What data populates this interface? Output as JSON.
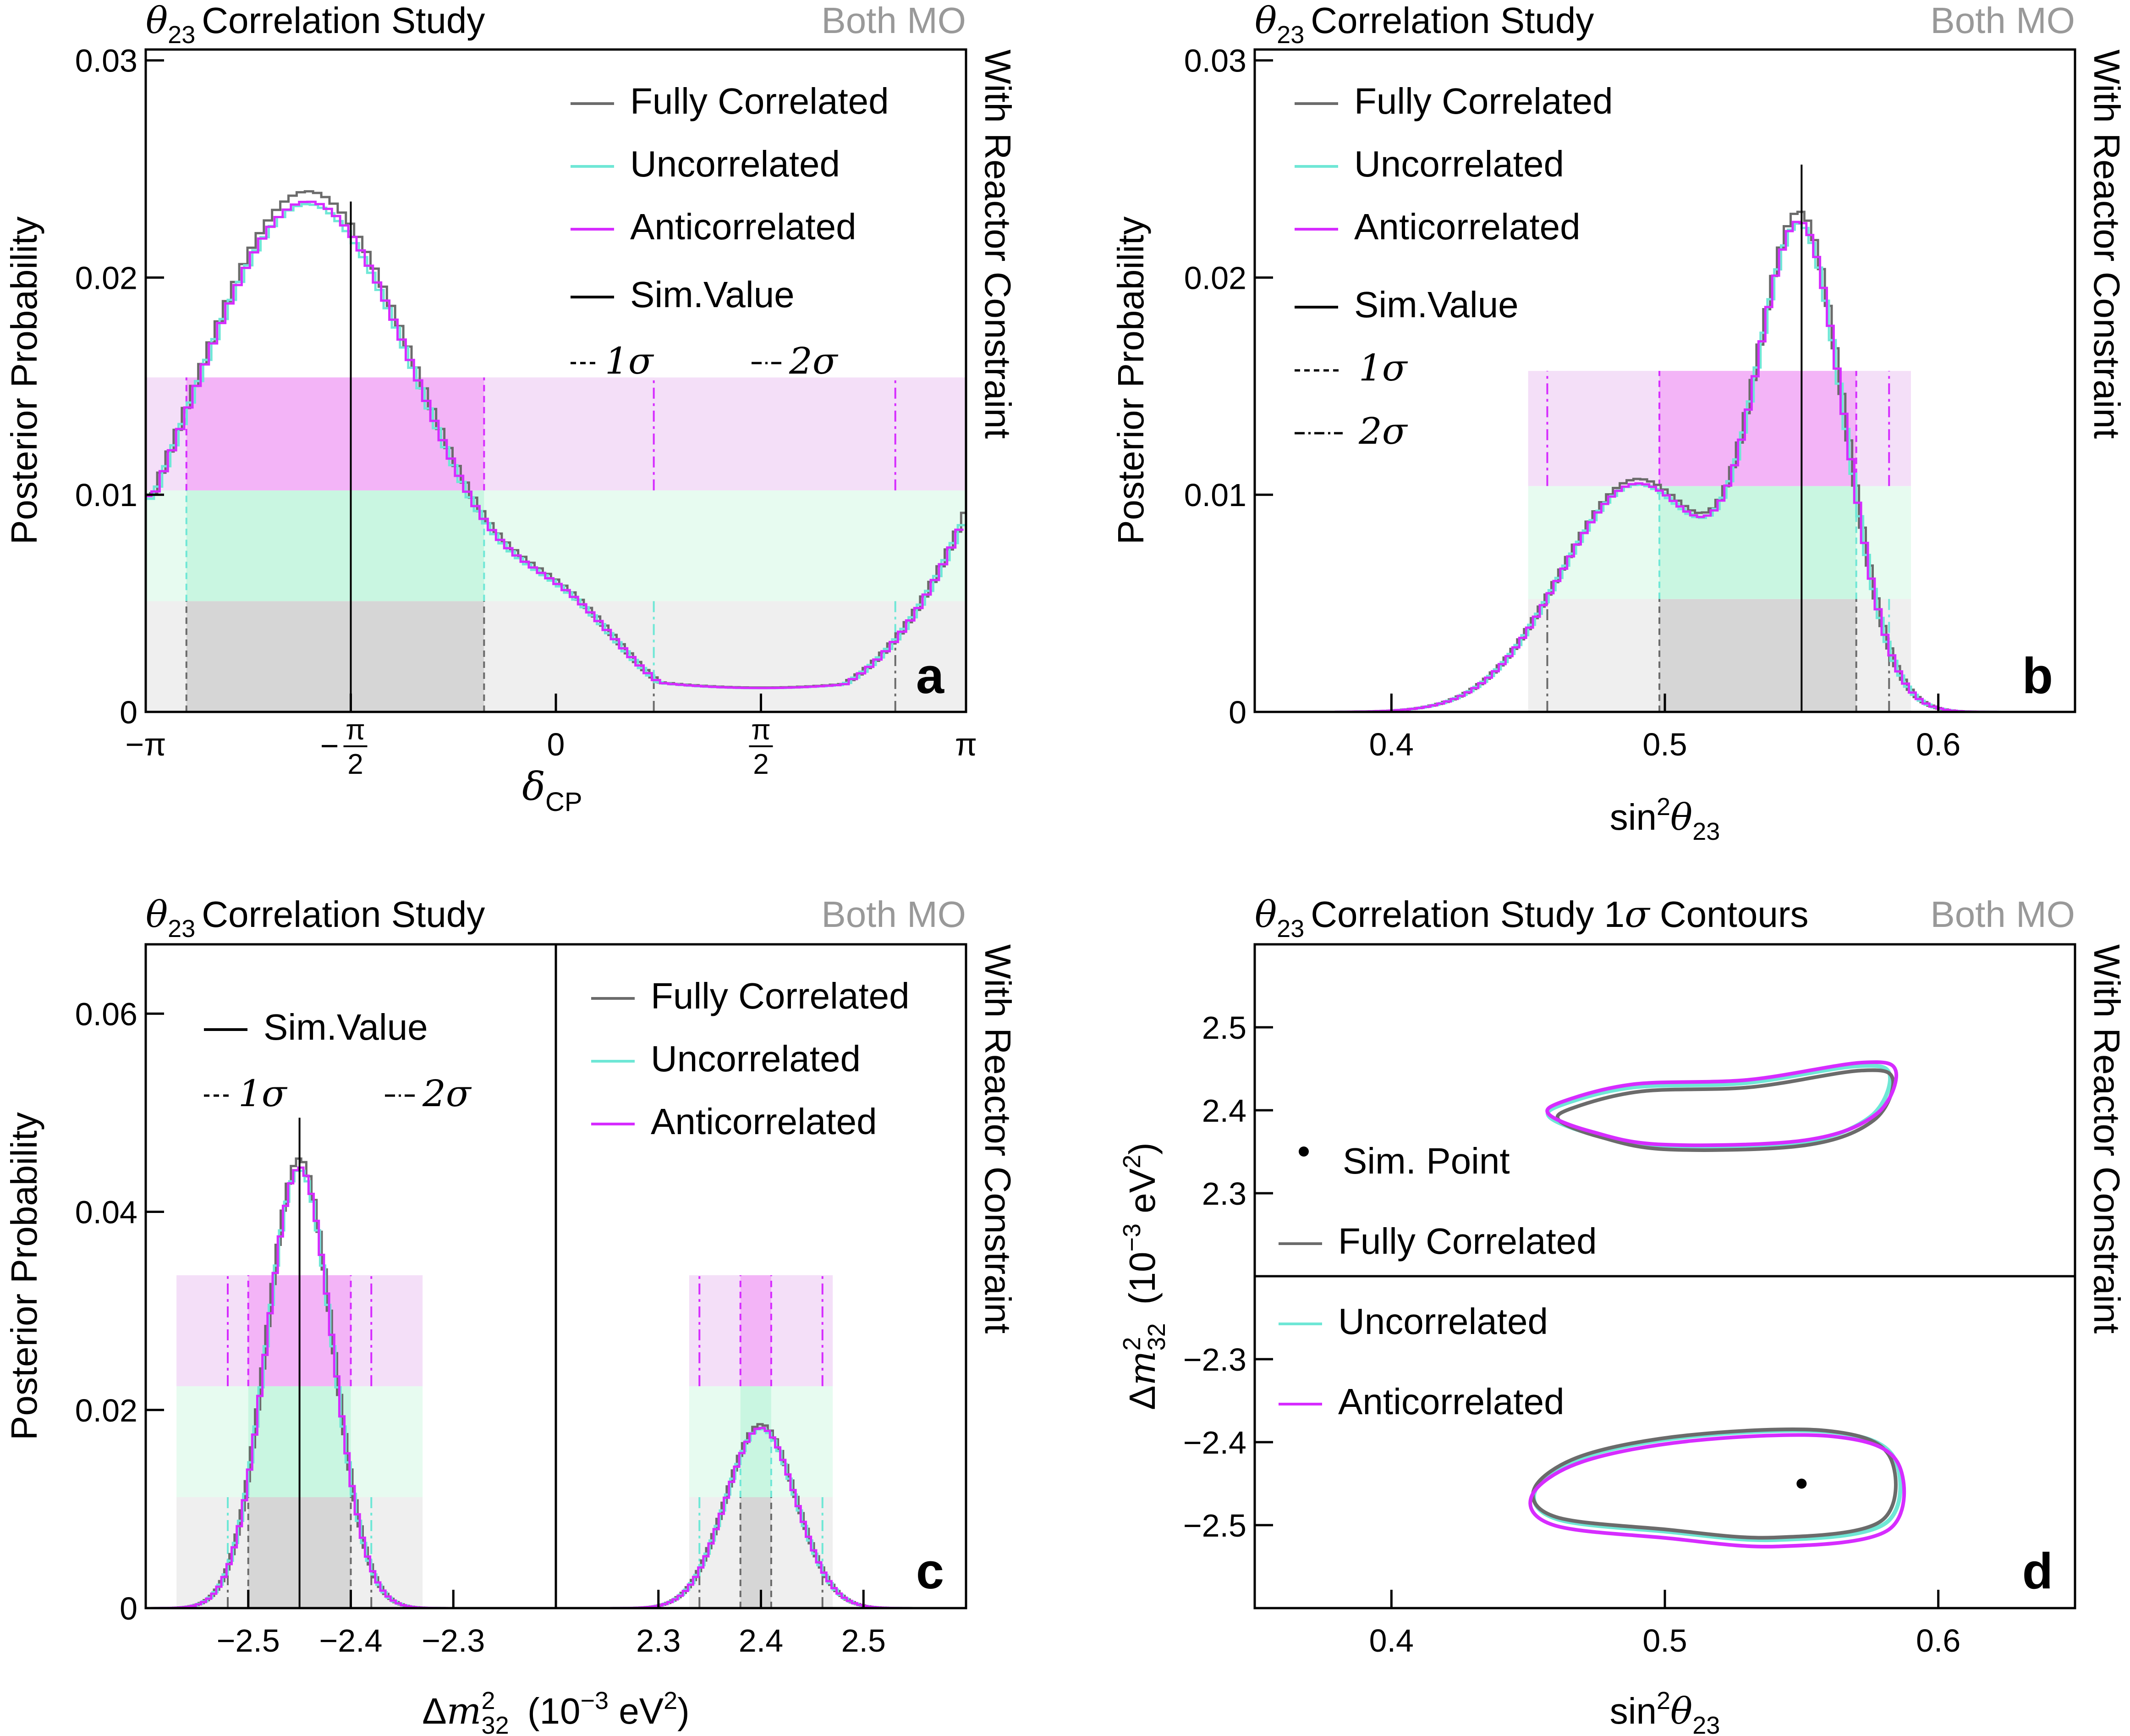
{
  "figure_title": "θ23 Correlation Study figure",
  "colors": {
    "fully_correlated": "#6b6b6b",
    "uncorrelated": "#6fe7d6",
    "anticorrelated": "#d62cff",
    "sim_value": "#000000",
    "band_gray_1s": "#d6d6d6",
    "band_gray_2s": "#efefef",
    "band_teal_1s": "#c9f6e1",
    "band_teal_2s": "#e7fbf0",
    "band_mag_1s": "#f3b4f7",
    "band_mag_2s": "#f4dff8",
    "both_mo": "#999999"
  },
  "common": {
    "correlation_study": "Correlation Study",
    "both_mo": "Both MO",
    "with_reactor": "With Reactor Constraint",
    "posterior_probability": "Posterior Probability",
    "legend_fully": "Fully Correlated",
    "legend_uncorrelated": "Uncorrelated",
    "legend_anticorrelated": "Anticorrelated",
    "legend_sim": "Sim.Value",
    "legend_1s": "1σ",
    "legend_2s": "2σ"
  },
  "chart_data": [
    {
      "id": "a",
      "type": "histogram",
      "title": "θ23 Correlation Study",
      "panel_label": "a",
      "xlabel": "δCP",
      "ylabel": "Posterior Probability",
      "xlim": [
        -3.14159,
        3.14159
      ],
      "ylim": [
        0,
        0.0305
      ],
      "xticks": [
        -3.14159,
        -1.5708,
        0,
        1.5708,
        3.14159
      ],
      "xtick_labels": [
        "−π",
        "−π/2",
        "0",
        "π/2",
        "π"
      ],
      "yticks": [
        0,
        0.01,
        0.02,
        0.03
      ],
      "ytick_labels": [
        "0",
        "0.01",
        "0.02",
        "0.03"
      ],
      "sim_value": -1.5708,
      "model": {
        "peaks": [
          [
            -1.9,
            0.0235,
            0.9
          ],
          [
            0.1,
            0.0035,
            0.45
          ]
        ],
        "floor": 0.0011,
        "floor_center": 1.5708,
        "floor_width": 1.0,
        "periodic": true
      },
      "intervals": {
        "1sigma": [
          [
            -2.83,
            -0.55
          ]
        ],
        "2sigma": [
          [
            -3.14159,
            0.75
          ],
          [
            2.6,
            3.14159
          ]
        ]
      },
      "band_levels": [
        0.0051,
        0.0102,
        0.0154
      ]
    },
    {
      "id": "b",
      "type": "histogram",
      "title": "θ23 Correlation Study",
      "panel_label": "b",
      "xlabel": "sin²θ23",
      "ylabel": "Posterior Probability",
      "xlim": [
        0.35,
        0.65
      ],
      "ylim": [
        0,
        0.0305
      ],
      "xticks": [
        0.4,
        0.5,
        0.6
      ],
      "xtick_labels": [
        "0.4",
        "0.5",
        "0.6"
      ],
      "yticks": [
        0,
        0.01,
        0.02,
        0.03
      ],
      "ytick_labels": [
        "0",
        "0.01",
        "0.02",
        "0.03"
      ],
      "sim_value": 0.55,
      "model": {
        "peaks": [
          [
            0.55,
            0.0215,
            0.016
          ],
          [
            0.49,
            0.0105,
            0.028
          ]
        ]
      },
      "intervals": {
        "1sigma": [
          [
            0.498,
            0.57
          ]
        ],
        "2sigma": [
          [
            0.457,
            0.582
          ]
        ]
      },
      "band_levels": [
        0.0052,
        0.0104,
        0.0157
      ]
    },
    {
      "id": "c",
      "type": "histogram_split",
      "title": "θ23 Correlation Study",
      "panel_label": "c",
      "xlabel": "Δm²32 (10⁻³ eV²)",
      "ylabel": "Posterior Probability",
      "left_xlim": [
        -2.6,
        -2.2
      ],
      "right_xlim": [
        2.2,
        2.6
      ],
      "ylim": [
        0,
        0.067
      ],
      "left_xticks": [
        -2.5,
        -2.4,
        -2.3
      ],
      "left_xtick_labels": [
        "−2.5",
        "−2.4",
        "−2.3"
      ],
      "right_xticks": [
        2.3,
        2.4,
        2.5
      ],
      "right_xtick_labels": [
        "2.3",
        "2.4",
        "2.5"
      ],
      "yticks": [
        0,
        0.02,
        0.04,
        0.06
      ],
      "ytick_labels": [
        "0",
        "0.02",
        "0.04",
        "0.06"
      ],
      "sim_value": -2.45,
      "left_model": {
        "peaks": [
          [
            -2.45,
            0.0445,
            0.032
          ]
        ]
      },
      "right_model": {
        "peaks": [
          [
            2.4,
            0.0182,
            0.034
          ]
        ]
      },
      "intervals": {
        "left_1sigma": [
          [
            -2.5,
            -2.4
          ]
        ],
        "left_2sigma": [
          [
            -2.52,
            -2.38
          ]
        ],
        "right_1sigma": [
          [
            2.38,
            2.41
          ]
        ],
        "right_2sigma": [
          [
            2.34,
            2.46
          ]
        ]
      },
      "band_levels": [
        0.0112,
        0.0224,
        0.0336
      ]
    },
    {
      "id": "d",
      "type": "contour",
      "title": "θ23 Correlation Study 1σ Contours",
      "panel_label": "d",
      "xlabel": "sin²θ23",
      "ylabel": "Δm²32 (10⁻³ eV²)",
      "xlim": [
        0.35,
        0.65
      ],
      "upper_ylim": [
        2.2,
        2.6
      ],
      "lower_ylim": [
        -2.6,
        -2.2
      ],
      "xticks": [
        0.4,
        0.5,
        0.6
      ],
      "xtick_labels": [
        "0.4",
        "0.5",
        "0.6"
      ],
      "upper_yticks": [
        2.3,
        2.4,
        2.5
      ],
      "upper_ytick_labels": [
        "2.3",
        "2.4",
        "2.5"
      ],
      "lower_yticks": [
        -2.5,
        -2.4,
        -2.3
      ],
      "lower_ytick_labels": [
        "−2.5",
        "−2.4",
        "−2.3"
      ],
      "sim_point": [
        0.55,
        -2.45
      ],
      "legend_sim_point": "Sim. Point",
      "upper_contour": [
        [
          0.465,
          2.405
        ],
        [
          0.49,
          2.425
        ],
        [
          0.53,
          2.43
        ],
        [
          0.57,
          2.45
        ],
        [
          0.582,
          2.44
        ],
        [
          0.575,
          2.39
        ],
        [
          0.55,
          2.36
        ],
        [
          0.5,
          2.355
        ],
        [
          0.475,
          2.37
        ],
        [
          0.46,
          2.39
        ]
      ],
      "lower_contour": [
        [
          0.452,
          -2.46
        ],
        [
          0.47,
          -2.42
        ],
        [
          0.51,
          -2.395
        ],
        [
          0.56,
          -2.39
        ],
        [
          0.583,
          -2.42
        ],
        [
          0.58,
          -2.5
        ],
        [
          0.54,
          -2.52
        ],
        [
          0.5,
          -2.51
        ],
        [
          0.46,
          -2.495
        ]
      ]
    }
  ]
}
